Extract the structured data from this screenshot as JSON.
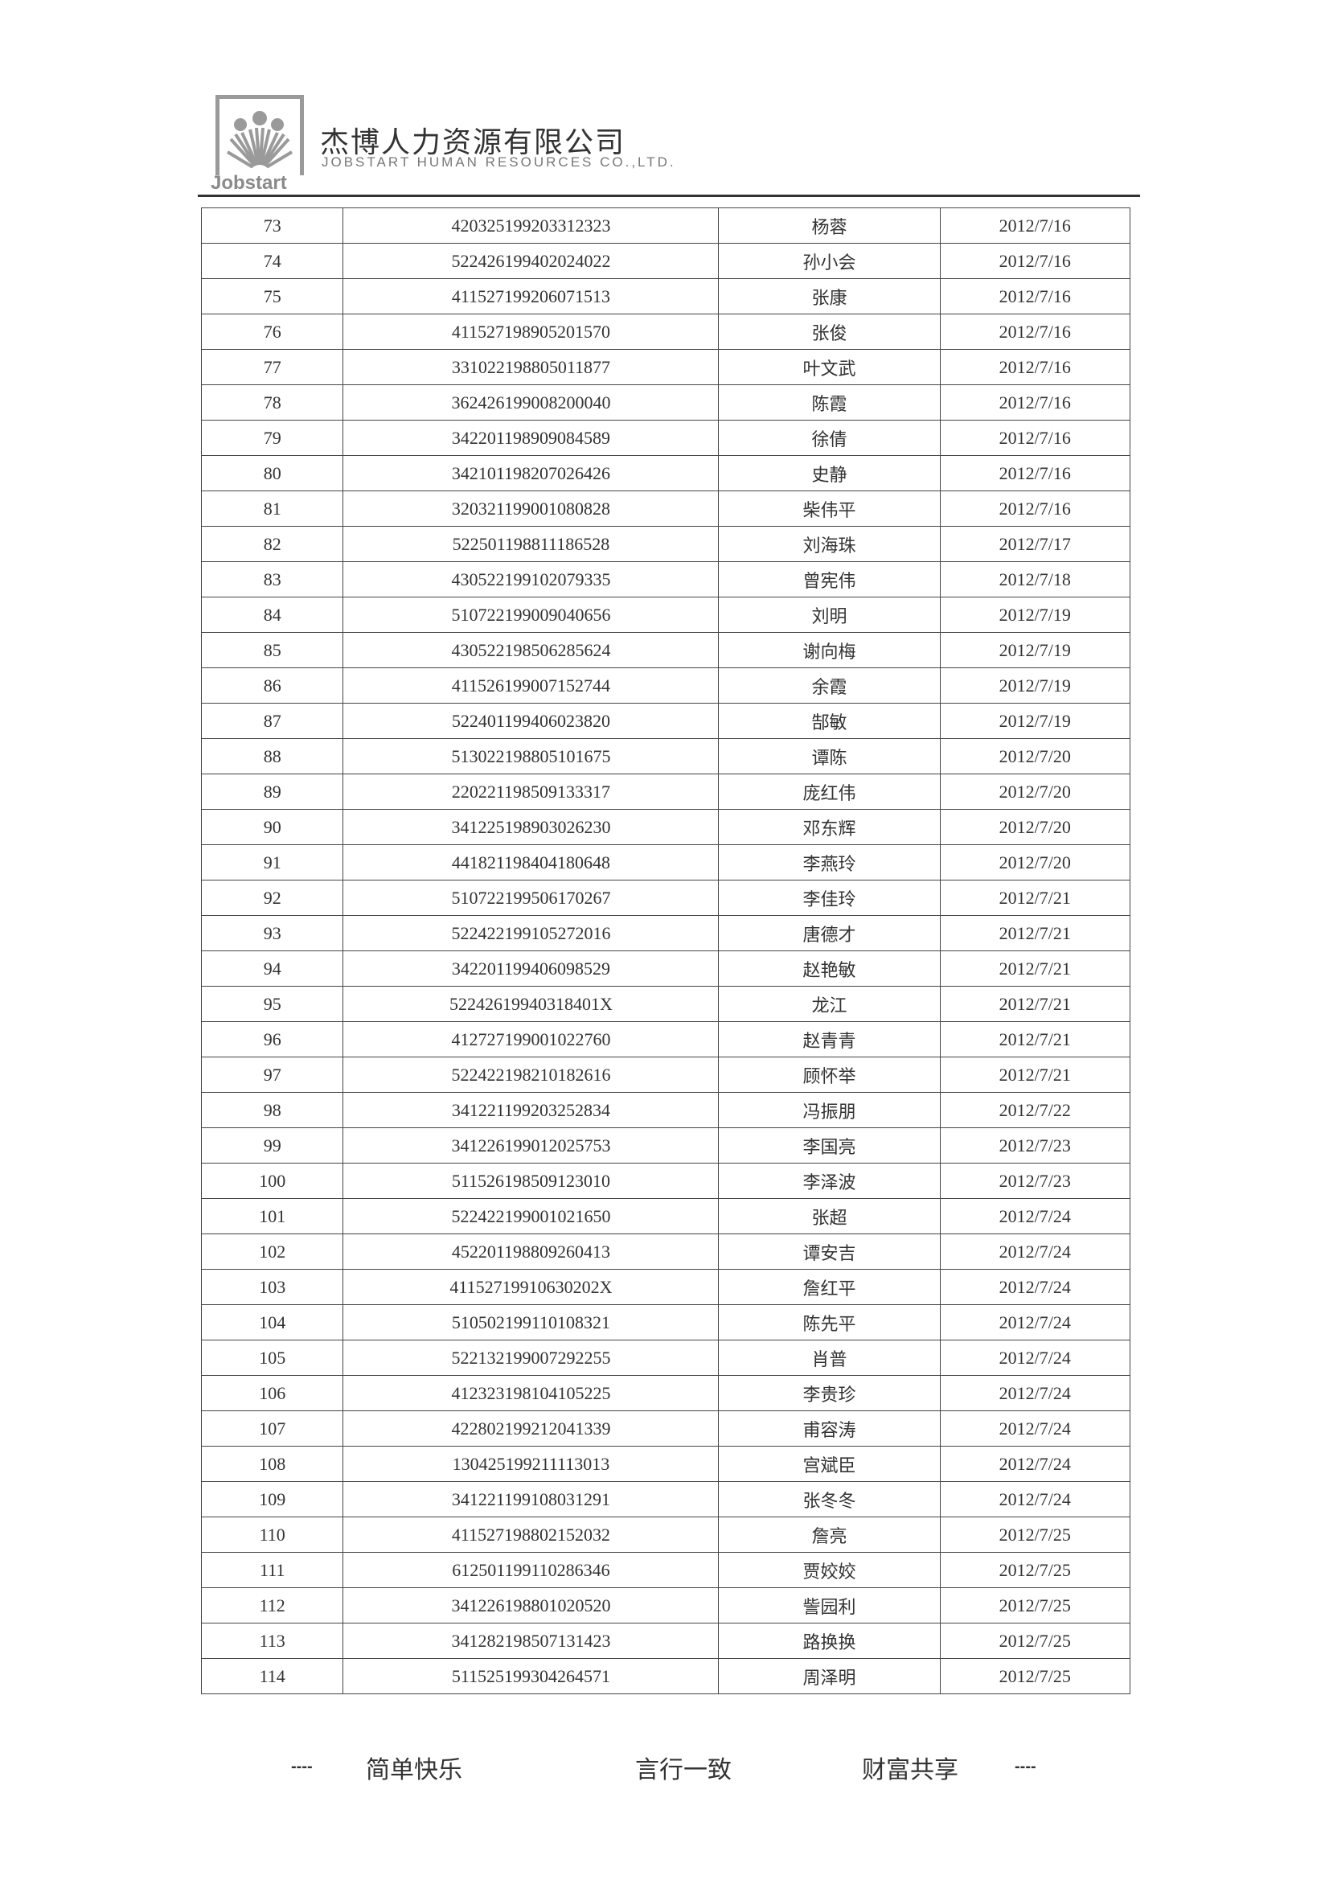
{
  "header": {
    "logo_text": "Jobstart",
    "company_cn": "杰博人力资源有限公司",
    "company_en": "JOBSTART HUMAN RESOURCES CO.,LTD."
  },
  "rows": [
    {
      "no": "73",
      "id": "420325199203312323",
      "name": "杨蓉",
      "date": "2012/7/16"
    },
    {
      "no": "74",
      "id": "522426199402024022",
      "name": "孙小会",
      "date": "2012/7/16"
    },
    {
      "no": "75",
      "id": "411527199206071513",
      "name": "张康",
      "date": "2012/7/16"
    },
    {
      "no": "76",
      "id": "411527198905201570",
      "name": "张俊",
      "date": "2012/7/16"
    },
    {
      "no": "77",
      "id": "331022198805011877",
      "name": "叶文武",
      "date": "2012/7/16"
    },
    {
      "no": "78",
      "id": "362426199008200040",
      "name": "陈霞",
      "date": "2012/7/16"
    },
    {
      "no": "79",
      "id": "342201198909084589",
      "name": "徐倩",
      "date": "2012/7/16"
    },
    {
      "no": "80",
      "id": "342101198207026426",
      "name": "史静",
      "date": "2012/7/16"
    },
    {
      "no": "81",
      "id": "320321199001080828",
      "name": "柴伟平",
      "date": "2012/7/16"
    },
    {
      "no": "82",
      "id": "522501198811186528",
      "name": "刘海珠",
      "date": "2012/7/17"
    },
    {
      "no": "83",
      "id": "430522199102079335",
      "name": "曾宪伟",
      "date": "2012/7/18"
    },
    {
      "no": "84",
      "id": "510722199009040656",
      "name": "刘明",
      "date": "2012/7/19"
    },
    {
      "no": "85",
      "id": "430522198506285624",
      "name": "谢向梅",
      "date": "2012/7/19"
    },
    {
      "no": "86",
      "id": "411526199007152744",
      "name": "余霞",
      "date": "2012/7/19"
    },
    {
      "no": "87",
      "id": "522401199406023820",
      "name": "郜敏",
      "date": "2012/7/19"
    },
    {
      "no": "88",
      "id": "513022198805101675",
      "name": "谭陈",
      "date": "2012/7/20"
    },
    {
      "no": "89",
      "id": "220221198509133317",
      "name": "庞红伟",
      "date": "2012/7/20"
    },
    {
      "no": "90",
      "id": "341225198903026230",
      "name": "邓东辉",
      "date": "2012/7/20"
    },
    {
      "no": "91",
      "id": "441821198404180648",
      "name": "李燕玲",
      "date": "2012/7/20"
    },
    {
      "no": "92",
      "id": "510722199506170267",
      "name": "李佳玲",
      "date": "2012/7/21"
    },
    {
      "no": "93",
      "id": "522422199105272016",
      "name": "唐德才",
      "date": "2012/7/21"
    },
    {
      "no": "94",
      "id": "342201199406098529",
      "name": "赵艳敏",
      "date": "2012/7/21"
    },
    {
      "no": "95",
      "id": "52242619940318401X",
      "name": "龙江",
      "date": "2012/7/21"
    },
    {
      "no": "96",
      "id": "412727199001022760",
      "name": "赵青青",
      "date": "2012/7/21"
    },
    {
      "no": "97",
      "id": "522422198210182616",
      "name": "顾怀举",
      "date": "2012/7/21"
    },
    {
      "no": "98",
      "id": "341221199203252834",
      "name": "冯振朋",
      "date": "2012/7/22"
    },
    {
      "no": "99",
      "id": "341226199012025753",
      "name": "李国亮",
      "date": "2012/7/23"
    },
    {
      "no": "100",
      "id": "511526198509123010",
      "name": "李泽波",
      "date": "2012/7/23"
    },
    {
      "no": "101",
      "id": "522422199001021650",
      "name": "张超",
      "date": "2012/7/24"
    },
    {
      "no": "102",
      "id": "452201198809260413",
      "name": "谭安吉",
      "date": "2012/7/24"
    },
    {
      "no": "103",
      "id": "41152719910630202X",
      "name": "詹红平",
      "date": "2012/7/24"
    },
    {
      "no": "104",
      "id": "510502199110108321",
      "name": "陈先平",
      "date": "2012/7/24"
    },
    {
      "no": "105",
      "id": "522132199007292255",
      "name": "肖普",
      "date": "2012/7/24"
    },
    {
      "no": "106",
      "id": "412323198104105225",
      "name": "李贵珍",
      "date": "2012/7/24"
    },
    {
      "no": "107",
      "id": "422802199212041339",
      "name": "甫容涛",
      "date": "2012/7/24"
    },
    {
      "no": "108",
      "id": "130425199211113013",
      "name": "宫斌臣",
      "date": "2012/7/24"
    },
    {
      "no": "109",
      "id": "341221199108031291",
      "name": "张冬冬",
      "date": "2012/7/24"
    },
    {
      "no": "110",
      "id": "411527198802152032",
      "name": "詹亮",
      "date": "2012/7/25"
    },
    {
      "no": "111",
      "id": "612501199110286346",
      "name": "贾姣姣",
      "date": "2012/7/25"
    },
    {
      "no": "112",
      "id": "341226198801020520",
      "name": "訾园利",
      "date": "2012/7/25"
    },
    {
      "no": "113",
      "id": "341282198507131423",
      "name": "路换换",
      "date": "2012/7/25"
    },
    {
      "no": "114",
      "id": "511525199304264571",
      "name": "周泽明",
      "date": "2012/7/25"
    }
  ],
  "footer": {
    "dash_left": "----",
    "motto_1": "简单快乐",
    "motto_2": "言行一致",
    "motto_3": "财富共享",
    "dash_right": "----"
  }
}
